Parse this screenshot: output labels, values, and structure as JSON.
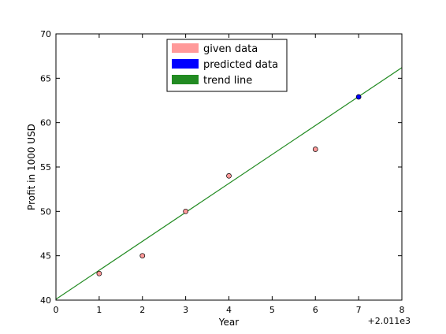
{
  "chart_data": {
    "type": "scatter",
    "title": "",
    "xlabel": "Year",
    "ylabel": "Profit in 1000 USD",
    "x_offset_label": "+2.011e3",
    "xlim": [
      0,
      8
    ],
    "ylim": [
      40,
      70
    ],
    "x_ticks": [
      "0",
      "1",
      "2",
      "3",
      "4",
      "5",
      "6",
      "7",
      "8"
    ],
    "y_ticks": [
      "40",
      "45",
      "50",
      "55",
      "60",
      "65",
      "70"
    ],
    "grid": false,
    "legend_position": "top-center",
    "series": [
      {
        "name": "given data",
        "kind": "scatter",
        "color": "#ff9999",
        "points": [
          {
            "x": 1,
            "y": 43
          },
          {
            "x": 2,
            "y": 45
          },
          {
            "x": 3,
            "y": 50
          },
          {
            "x": 4,
            "y": 54
          },
          {
            "x": 6,
            "y": 57
          }
        ]
      },
      {
        "name": "predicted data",
        "kind": "scatter",
        "color": "#0000ff",
        "points": [
          {
            "x": 7,
            "y": 62.9
          }
        ]
      },
      {
        "name": "trend line",
        "kind": "line",
        "color": "#228b22",
        "points": [
          {
            "x": 0,
            "y": 40.1
          },
          {
            "x": 8,
            "y": 66.2
          }
        ]
      }
    ]
  }
}
